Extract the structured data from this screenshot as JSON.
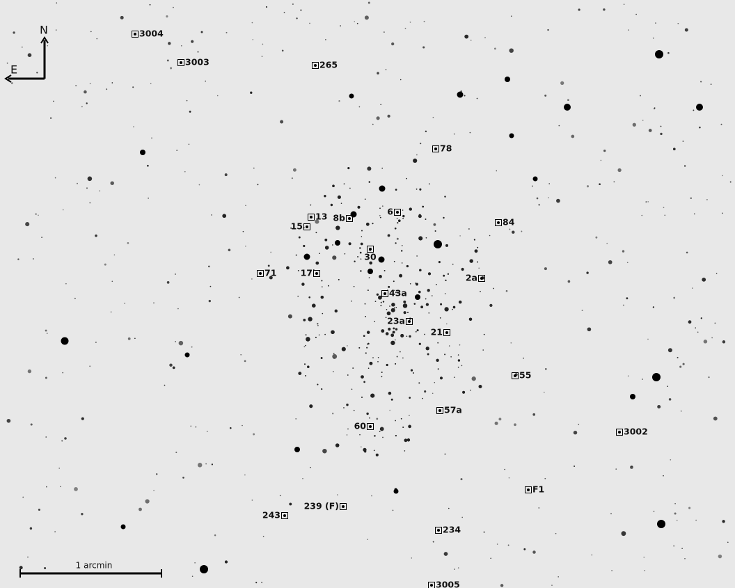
{
  "compass": {
    "north": "N",
    "east": "E"
  },
  "scale_bar": "1 arcmin",
  "stars": [
    {
      "label": "3004"
    },
    {
      "label": "3003"
    },
    {
      "label": "265"
    },
    {
      "label": "78"
    },
    {
      "label": "13"
    },
    {
      "label": "8b"
    },
    {
      "label": "6"
    },
    {
      "label": "15"
    },
    {
      "label": "84"
    },
    {
      "label": "30"
    },
    {
      "label": "71"
    },
    {
      "label": "17"
    },
    {
      "label": "2a"
    },
    {
      "label": "43a"
    },
    {
      "label": "23a"
    },
    {
      "label": "21"
    },
    {
      "label": "55"
    },
    {
      "label": "57a"
    },
    {
      "label": "60"
    },
    {
      "label": "3002"
    },
    {
      "label": "F1"
    },
    {
      "label": "239 (F)"
    },
    {
      "label": "243"
    },
    {
      "label": "234"
    },
    {
      "label": "3005"
    }
  ]
}
